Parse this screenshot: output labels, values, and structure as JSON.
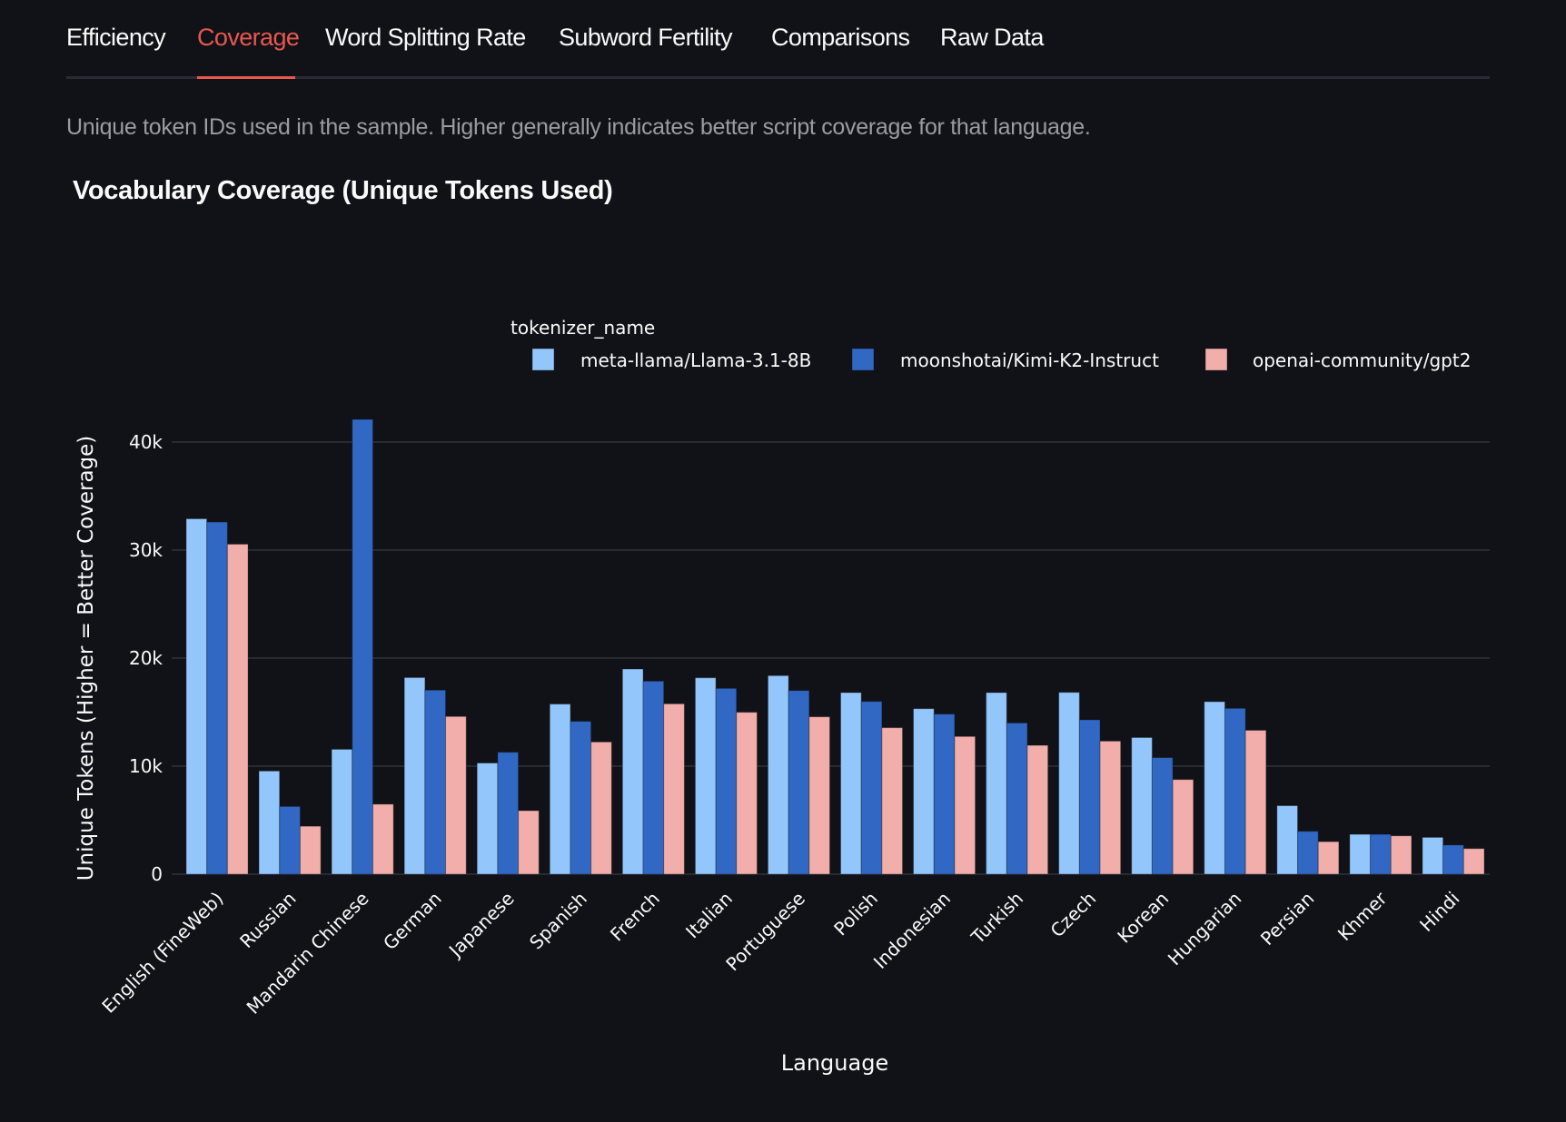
{
  "tabs": [
    {
      "label": "Efficiency",
      "active": false
    },
    {
      "label": "Coverage",
      "active": true
    },
    {
      "label": "Word Splitting Rate",
      "active": false
    },
    {
      "label": "Subword Fertility",
      "active": false
    },
    {
      "label": "Comparisons",
      "active": false
    },
    {
      "label": "Raw Data",
      "active": false
    }
  ],
  "caption": "Unique token IDs used in the sample. Higher generally indicates better script coverage for that language.",
  "colors": {
    "background": "#111217",
    "active_tab": "#e8584f",
    "grid": "#31333c",
    "caption": "#9a9ca3"
  },
  "chart_data": {
    "type": "bar",
    "title": "Vocabulary Coverage (Unique Tokens Used)",
    "xlabel": "Language",
    "ylabel": "Unique Tokens (Higher = Better Coverage)",
    "ylim": [
      0,
      43000
    ],
    "yticks": [
      0,
      10000,
      20000,
      30000,
      40000
    ],
    "ytick_labels": [
      "0",
      "10k",
      "20k",
      "30k",
      "40k"
    ],
    "grid": true,
    "legend": {
      "title": "tokenizer_name",
      "placement": "top-right"
    },
    "categories": [
      "English (FineWeb)",
      "Russian",
      "Mandarin Chinese",
      "German",
      "Japanese",
      "Spanish",
      "French",
      "Italian",
      "Portuguese",
      "Polish",
      "Indonesian",
      "Turkish",
      "Czech",
      "Korean",
      "Hungarian",
      "Persian",
      "Khmer",
      "Hindi"
    ],
    "series": [
      {
        "name": "meta-llama/Llama-3.1-8B",
        "color": "#93c7fb",
        "values": [
          32900,
          9550,
          11560,
          18200,
          10290,
          15750,
          18990,
          18180,
          18380,
          16810,
          15320,
          16810,
          16830,
          12650,
          15970,
          6340,
          3690,
          3410
        ]
      },
      {
        "name": "moonshotai/Kimi-K2-Instruct",
        "color": "#3068c4",
        "values": [
          32600,
          6270,
          42100,
          17040,
          11290,
          14150,
          17870,
          17200,
          17000,
          15990,
          14820,
          14000,
          14290,
          10790,
          15350,
          3970,
          3690,
          2700
        ]
      },
      {
        "name": "openai-community/gpt2",
        "color": "#f2aeab",
        "values": [
          30550,
          4440,
          6480,
          14600,
          5880,
          12240,
          15770,
          14990,
          14570,
          13560,
          12750,
          11930,
          12320,
          8760,
          13320,
          3010,
          3550,
          2370
        ]
      }
    ]
  }
}
